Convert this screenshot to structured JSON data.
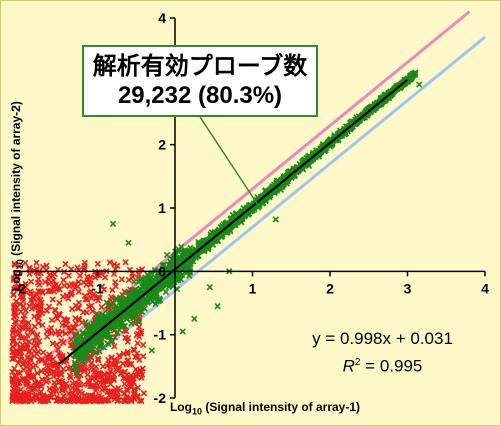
{
  "chart_data": {
    "type": "scatter",
    "title": "",
    "xlabel_prefix": "Log",
    "xlabel_sub": "10",
    "xlabel_rest": " (Signal intensity of array-1)",
    "ylabel_prefix": "Log",
    "ylabel_sub": "10",
    "ylabel_rest": " (Signal intensity of array-2)",
    "xlim": [
      -2,
      4
    ],
    "ylim": [
      -2,
      4
    ],
    "x_ticks": [
      "-2",
      "-1",
      "0",
      "1",
      "2",
      "3",
      "4"
    ],
    "y_ticks": [
      "-2",
      "-1",
      "0",
      "1",
      "2",
      "3",
      "4"
    ],
    "annotation_line1": "解析有効プローブ数",
    "annotation_line2": "29,232 (80.3%)",
    "equation": "y = 0.998x + 0.031",
    "r2_label": "R",
    "r2_sup": "2",
    "r2_value": " = 0.995",
    "fit_line": {
      "slope": 0.998,
      "intercept": 0.031,
      "x_range": [
        -1.5,
        3.0
      ]
    },
    "upper_guide": {
      "slope": 1,
      "intercept": 0.301
    },
    "lower_guide": {
      "slope": 1,
      "intercept": -0.301
    },
    "series": [
      {
        "color": "#e82020"
      },
      {
        "color": "#1a8a1a"
      }
    ],
    "colors": {
      "pass": "#1a8a1a",
      "fail": "#e82020",
      "fit": "#000000",
      "upper_guide": "#ee88bb",
      "lower_guide": "#9ec6ee",
      "axis": "#000000",
      "background": "#fff8c8"
    }
  }
}
